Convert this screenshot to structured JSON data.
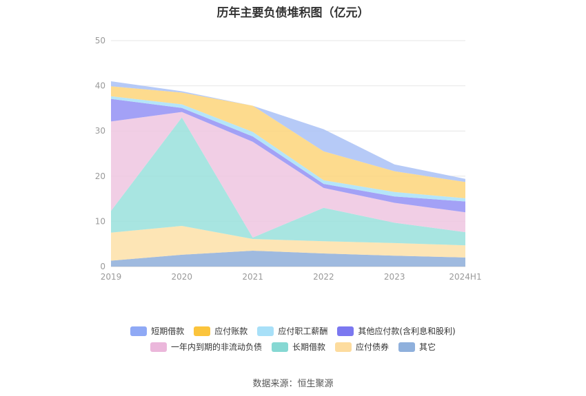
{
  "title": "历年主要负债堆积图（亿元）",
  "source": "数据来源：恒生聚源",
  "chart_data": {
    "type": "area",
    "stacked": true,
    "categories": [
      "2019",
      "2020",
      "2021",
      "2022",
      "2023",
      "2024H1"
    ],
    "ylim": [
      0,
      50
    ],
    "yticks": [
      0,
      10,
      20,
      30,
      40,
      50
    ],
    "grid": true,
    "legend_position": "bottom",
    "series": [
      {
        "name": "其它",
        "color": "#8eaed9",
        "values": [
          1.3,
          2.6,
          3.5,
          2.9,
          2.4,
          2.0
        ]
      },
      {
        "name": "应付债券",
        "color": "#fde0a8",
        "values": [
          6.2,
          6.4,
          2.6,
          2.7,
          2.8,
          2.7
        ]
      },
      {
        "name": "长期借款",
        "color": "#99e0dc",
        "values": [
          4.8,
          24.0,
          0.3,
          7.4,
          4.5,
          2.9
        ]
      },
      {
        "name": "一年内到期的非流动负债",
        "color": "#efc5e0",
        "values": [
          19.8,
          1.2,
          21.2,
          4.4,
          4.4,
          4.4
        ]
      },
      {
        "name": "其他应付款(含利息和股利)",
        "color": "#9390f5",
        "values": [
          5.0,
          0.9,
          1.2,
          0.9,
          1.4,
          2.4
        ]
      },
      {
        "name": "应付职工薪酬",
        "color": "#a8e0f8",
        "values": [
          0.6,
          0.8,
          1.0,
          0.8,
          1.0,
          0.7
        ]
      },
      {
        "name": "应付账款",
        "color": "#fdd57a",
        "values": [
          2.2,
          2.6,
          5.8,
          6.4,
          4.6,
          3.6
        ]
      },
      {
        "name": "短期借款",
        "color": "#a9c1f6",
        "values": [
          1.1,
          0.3,
          0.0,
          4.9,
          1.5,
          0.7
        ]
      }
    ],
    "legend_order": [
      "短期借款",
      "应付账款",
      "应付职工薪酬",
      "其他应付款(含利息和股利)",
      "一年内到期的非流动负债",
      "长期借款",
      "应付债券",
      "其它"
    ],
    "legend_colors": {
      "短期借款": "#8fa9f5",
      "应付账款": "#fbc43c",
      "应付职工薪酬": "#a8e0f8",
      "其他应付款(含利息和股利)": "#7b78f0",
      "一年内到期的非流动负债": "#ebb7db",
      "长期借款": "#86d8d3",
      "应付债券": "#fddc9e",
      "其它": "#8fb0dc"
    }
  }
}
